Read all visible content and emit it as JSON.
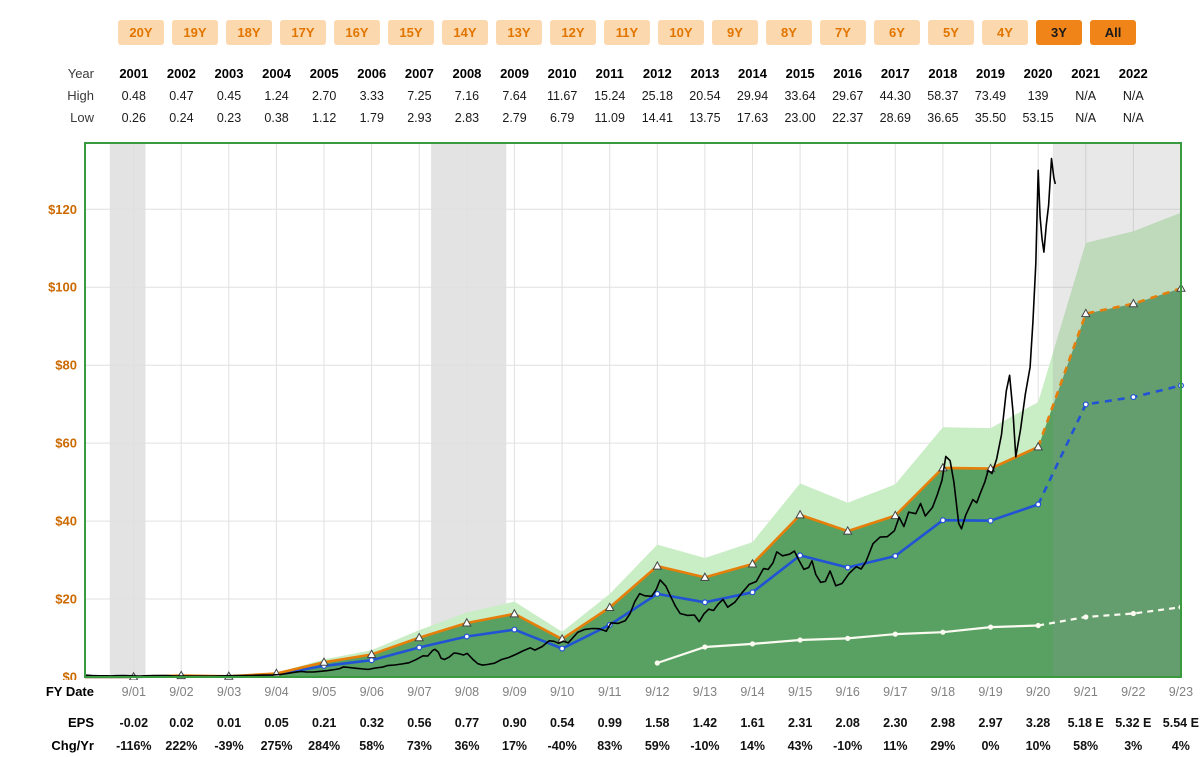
{
  "range_buttons": {
    "items": [
      {
        "label": "20Y",
        "active": false
      },
      {
        "label": "19Y",
        "active": false
      },
      {
        "label": "18Y",
        "active": false
      },
      {
        "label": "17Y",
        "active": false
      },
      {
        "label": "16Y",
        "active": false
      },
      {
        "label": "15Y",
        "active": false
      },
      {
        "label": "14Y",
        "active": false
      },
      {
        "label": "13Y",
        "active": false
      },
      {
        "label": "12Y",
        "active": false
      },
      {
        "label": "11Y",
        "active": false
      },
      {
        "label": "10Y",
        "active": false
      },
      {
        "label": "9Y",
        "active": false
      },
      {
        "label": "8Y",
        "active": false
      },
      {
        "label": "7Y",
        "active": false
      },
      {
        "label": "6Y",
        "active": false
      },
      {
        "label": "5Y",
        "active": false
      },
      {
        "label": "4Y",
        "active": false
      },
      {
        "label": "3Y",
        "active": true
      },
      {
        "label": "All",
        "active": true
      }
    ],
    "active_bg": "#f08418",
    "inactive_bg": "#fbd8ad"
  },
  "price_table": {
    "row_labels": {
      "year": "Year",
      "high": "High",
      "low": "Low"
    },
    "years": [
      "2001",
      "2002",
      "2003",
      "2004",
      "2005",
      "2006",
      "2007",
      "2008",
      "2009",
      "2010",
      "2011",
      "2012",
      "2013",
      "2014",
      "2015",
      "2016",
      "2017",
      "2018",
      "2019",
      "2020",
      "2021",
      "2022"
    ],
    "high": [
      "0.48",
      "0.47",
      "0.45",
      "1.24",
      "2.70",
      "3.33",
      "7.25",
      "7.16",
      "7.64",
      "11.67",
      "15.24",
      "25.18",
      "20.54",
      "29.94",
      "33.64",
      "29.67",
      "44.30",
      "58.37",
      "73.49",
      "139",
      "N/A",
      "N/A"
    ],
    "low": [
      "0.26",
      "0.24",
      "0.23",
      "0.38",
      "1.12",
      "1.79",
      "2.93",
      "2.83",
      "2.79",
      "6.79",
      "11.09",
      "14.41",
      "13.75",
      "17.63",
      "23.00",
      "22.37",
      "28.69",
      "36.65",
      "35.50",
      "53.15",
      "N/A",
      "N/A"
    ]
  },
  "fiscal_table": {
    "fy_date_label": "FY Date",
    "eps_label": "EPS",
    "chg_label": "Chg/Yr",
    "fy_labels": [
      "9/01",
      "9/02",
      "9/03",
      "9/04",
      "9/05",
      "9/06",
      "9/07",
      "9/08",
      "9/09",
      "9/10",
      "9/11",
      "9/12",
      "9/13",
      "9/14",
      "9/15",
      "9/16",
      "9/17",
      "9/18",
      "9/19",
      "9/20",
      "9/21",
      "9/22",
      "9/23"
    ],
    "eps": [
      "-0.02",
      "0.02",
      "0.01",
      "0.05",
      "0.21",
      "0.32",
      "0.56",
      "0.77",
      "0.90",
      "0.54",
      "0.99",
      "1.58",
      "1.42",
      "1.61",
      "2.31",
      "2.08",
      "2.30",
      "2.98",
      "2.97",
      "3.28",
      "5.18 E",
      "5.32 E",
      "5.54 E"
    ],
    "chg": [
      "-116%",
      "222%",
      "-39%",
      "275%",
      "284%",
      "58%",
      "73%",
      "36%",
      "17%",
      "-40%",
      "83%",
      "59%",
      "-10%",
      "14%",
      "43%",
      "-10%",
      "11%",
      "29%",
      "0%",
      "10%",
      "58%",
      "3%",
      "4%"
    ]
  },
  "chart_data": {
    "type": "line",
    "title": "",
    "x_start": 2000.65,
    "x_end": 2023.67,
    "fiscal_month_offset": 0.67,
    "fiscal_years": [
      2001,
      2002,
      2003,
      2004,
      2005,
      2006,
      2007,
      2008,
      2009,
      2010,
      2011,
      2012,
      2013,
      2014,
      2015,
      2016,
      2017,
      2018,
      2019,
      2020,
      2021,
      2022,
      2023
    ],
    "x_tick_labels": [
      "9/01",
      "9/02",
      "9/03",
      "9/04",
      "9/05",
      "9/06",
      "9/07",
      "9/08",
      "9/09",
      "9/10",
      "9/11",
      "9/12",
      "9/13",
      "9/14",
      "9/15",
      "9/16",
      "9/17",
      "9/18",
      "9/19",
      "9/20",
      "9/21",
      "9/22",
      "9/23"
    ],
    "y_axis": {
      "ticks": [
        0,
        20,
        40,
        60,
        80,
        100,
        120
      ],
      "tick_labels": [
        "$0",
        "$20",
        "$40",
        "$60",
        "$80",
        "$100",
        "$120"
      ],
      "max": 137
    },
    "last_actual_year": 2020,
    "recession_bands": [
      [
        2001.17,
        2001.92
      ],
      [
        2007.92,
        2009.5
      ]
    ],
    "forecast_start": 2020.98,
    "colors": {
      "dark_green_fill": "#58a163",
      "light_green_fill": "#c9edc4",
      "orange_line": "#e67e0a",
      "blue_line": "#2153d4",
      "dividend_line": "#fafaf0",
      "price_line": "#000000",
      "recession_band": "#e3e3e3",
      "forecast_overlay": "rgba(150,150,150,0.22)",
      "axis_label_orange": "#cc6a00",
      "border_green": "#3a9a40",
      "grid": "#e0e0e0",
      "plot_bg": "#ffffff"
    },
    "series": {
      "high_band_top": {
        "name": "high-valuation-band-top",
        "values": [
          0,
          0.43,
          0.22,
          1.08,
          4.52,
          6.88,
          12.04,
          16.56,
          19.35,
          11.61,
          21.29,
          33.97,
          30.53,
          34.62,
          49.67,
          44.72,
          49.45,
          64.07,
          63.86,
          70.52,
          111.37,
          114.38,
          119.11
        ]
      },
      "earnings_line": {
        "name": "earnings-justified-valuation",
        "values": [
          0,
          0.36,
          0.18,
          0.9,
          3.78,
          5.76,
          10.08,
          13.86,
          16.2,
          9.72,
          17.82,
          28.44,
          25.56,
          28.98,
          41.58,
          37.44,
          41.4,
          53.64,
          53.46,
          59.04,
          93.24,
          95.76,
          99.72
        ]
      },
      "normal_pe_line": {
        "name": "normal-pe-valuation",
        "values": [
          0,
          0.27,
          0.14,
          0.68,
          2.84,
          4.32,
          7.56,
          10.4,
          12.15,
          7.29,
          13.37,
          21.33,
          19.17,
          21.74,
          31.19,
          28.08,
          31.05,
          40.23,
          40.1,
          44.28,
          69.93,
          71.82,
          74.79
        ]
      },
      "dividend_line": {
        "name": "dividends",
        "start_year": 2012,
        "values": [
          3.6,
          7.7,
          8.5,
          9.5,
          9.9,
          11.0,
          11.5,
          12.8,
          13.2,
          15.4,
          16.3,
          17.9
        ]
      },
      "price_line": {
        "name": "monthly-closing-price",
        "points": [
          [
            2000.67,
            0.45
          ],
          [
            2000.8,
            0.36
          ],
          [
            2000.95,
            0.31
          ],
          [
            2001.1,
            0.31
          ],
          [
            2001.2,
            0.28
          ],
          [
            2001.3,
            0.33
          ],
          [
            2001.45,
            0.36
          ],
          [
            2001.55,
            0.34
          ],
          [
            2001.67,
            0.27
          ],
          [
            2001.8,
            0.26
          ],
          [
            2001.9,
            0.31
          ],
          [
            2002.0,
            0.33
          ],
          [
            2002.1,
            0.37
          ],
          [
            2002.2,
            0.39
          ],
          [
            2002.35,
            0.35
          ],
          [
            2002.5,
            0.28
          ],
          [
            2002.6,
            0.25
          ],
          [
            2002.75,
            0.26
          ],
          [
            2002.9,
            0.24
          ],
          [
            2003.0,
            0.23
          ],
          [
            2003.15,
            0.24
          ],
          [
            2003.3,
            0.26
          ],
          [
            2003.45,
            0.29
          ],
          [
            2003.6,
            0.32
          ],
          [
            2003.75,
            0.34
          ],
          [
            2003.9,
            0.36
          ],
          [
            2004.0,
            0.38
          ],
          [
            2004.15,
            0.42
          ],
          [
            2004.3,
            0.46
          ],
          [
            2004.45,
            0.5
          ],
          [
            2004.6,
            0.55
          ],
          [
            2004.75,
            0.65
          ],
          [
            2004.9,
            0.93
          ],
          [
            2005.0,
            1.1
          ],
          [
            2005.1,
            1.3
          ],
          [
            2005.2,
            1.44
          ],
          [
            2005.3,
            1.28
          ],
          [
            2005.45,
            1.28
          ],
          [
            2005.6,
            1.47
          ],
          [
            2005.75,
            1.65
          ],
          [
            2005.9,
            1.93
          ],
          [
            2006.0,
            2.16
          ],
          [
            2006.08,
            2.58
          ],
          [
            2006.2,
            2.44
          ],
          [
            2006.35,
            2.22
          ],
          [
            2006.5,
            2.05
          ],
          [
            2006.6,
            1.95
          ],
          [
            2006.75,
            2.32
          ],
          [
            2006.9,
            2.55
          ],
          [
            2007.0,
            2.93
          ],
          [
            2007.15,
            3.07
          ],
          [
            2007.3,
            3.34
          ],
          [
            2007.45,
            3.65
          ],
          [
            2007.6,
            4.45
          ],
          [
            2007.75,
            5.45
          ],
          [
            2007.85,
            5.4
          ],
          [
            2007.95,
            6.8
          ],
          [
            2008.0,
            7.1
          ],
          [
            2008.07,
            6.4
          ],
          [
            2008.13,
            4.8
          ],
          [
            2008.2,
            4.48
          ],
          [
            2008.3,
            5.1
          ],
          [
            2008.4,
            6.15
          ],
          [
            2008.5,
            6.0
          ],
          [
            2008.6,
            5.65
          ],
          [
            2008.68,
            6.05
          ],
          [
            2008.8,
            4.5
          ],
          [
            2008.9,
            3.4
          ],
          [
            2009.0,
            3.05
          ],
          [
            2009.1,
            3.2
          ],
          [
            2009.25,
            3.55
          ],
          [
            2009.4,
            4.5
          ],
          [
            2009.55,
            5.0
          ],
          [
            2009.7,
            5.8
          ],
          [
            2009.85,
            6.7
          ],
          [
            2010.0,
            7.5
          ],
          [
            2010.1,
            6.9
          ],
          [
            2010.25,
            7.8
          ],
          [
            2010.4,
            9.3
          ],
          [
            2010.5,
            9.15
          ],
          [
            2010.6,
            8.65
          ],
          [
            2010.7,
            9.2
          ],
          [
            2010.8,
            8.75
          ],
          [
            2010.9,
            10.1
          ],
          [
            2011.0,
            11.5
          ],
          [
            2011.15,
            12.2
          ],
          [
            2011.3,
            12.45
          ],
          [
            2011.45,
            12.4
          ],
          [
            2011.6,
            11.75
          ],
          [
            2011.7,
            13.9
          ],
          [
            2011.85,
            13.75
          ],
          [
            2012.0,
            14.46
          ],
          [
            2012.1,
            16.3
          ],
          [
            2012.2,
            19.4
          ],
          [
            2012.3,
            21.4
          ],
          [
            2012.4,
            20.85
          ],
          [
            2012.55,
            20.7
          ],
          [
            2012.65,
            22.5
          ],
          [
            2012.73,
            24.9
          ],
          [
            2012.85,
            23.3
          ],
          [
            2012.95,
            20.7
          ],
          [
            2013.05,
            18.2
          ],
          [
            2013.15,
            16.3
          ],
          [
            2013.3,
            15.8
          ],
          [
            2013.45,
            15.9
          ],
          [
            2013.55,
            14.2
          ],
          [
            2013.65,
            16.2
          ],
          [
            2013.75,
            17.4
          ],
          [
            2013.85,
            17.05
          ],
          [
            2013.95,
            18.7
          ],
          [
            2014.05,
            19.9
          ],
          [
            2014.15,
            17.9
          ],
          [
            2014.3,
            19.2
          ],
          [
            2014.45,
            21.6
          ],
          [
            2014.6,
            23.75
          ],
          [
            2014.75,
            24.5
          ],
          [
            2014.9,
            27.8
          ],
          [
            2015.0,
            27.6
          ],
          [
            2015.1,
            29.3
          ],
          [
            2015.18,
            32.1
          ],
          [
            2015.3,
            31.1
          ],
          [
            2015.45,
            31.5
          ],
          [
            2015.55,
            32.3
          ],
          [
            2015.65,
            29.8
          ],
          [
            2015.75,
            27.6
          ],
          [
            2015.85,
            28.1
          ],
          [
            2015.92,
            29.8
          ],
          [
            2016.0,
            26.3
          ],
          [
            2016.1,
            24.3
          ],
          [
            2016.2,
            24.5
          ],
          [
            2016.3,
            27.2
          ],
          [
            2016.42,
            23.4
          ],
          [
            2016.55,
            24.0
          ],
          [
            2016.7,
            26.6
          ],
          [
            2016.85,
            28.3
          ],
          [
            2016.95,
            27.7
          ],
          [
            2017.05,
            29.5
          ],
          [
            2017.2,
            34.2
          ],
          [
            2017.35,
            35.9
          ],
          [
            2017.5,
            36.0
          ],
          [
            2017.65,
            37.5
          ],
          [
            2017.75,
            41.0
          ],
          [
            2017.85,
            38.6
          ],
          [
            2017.95,
            42.3
          ],
          [
            2018.1,
            41.9
          ],
          [
            2018.2,
            44.5
          ],
          [
            2018.3,
            41.3
          ],
          [
            2018.45,
            43.5
          ],
          [
            2018.55,
            46.7
          ],
          [
            2018.65,
            50.5
          ],
          [
            2018.73,
            56.6
          ],
          [
            2018.82,
            55.5
          ],
          [
            2018.9,
            50.0
          ],
          [
            2019.0,
            39.4
          ],
          [
            2019.06,
            38.0
          ],
          [
            2019.15,
            41.6
          ],
          [
            2019.3,
            45.5
          ],
          [
            2019.38,
            44.7
          ],
          [
            2019.45,
            47.0
          ],
          [
            2019.55,
            50.0
          ],
          [
            2019.62,
            53.0
          ],
          [
            2019.7,
            52.2
          ],
          [
            2019.8,
            56.0
          ],
          [
            2019.9,
            62.2
          ],
          [
            2020.0,
            73.4
          ],
          [
            2020.07,
            77.4
          ],
          [
            2020.14,
            68.3
          ],
          [
            2020.2,
            56.5
          ],
          [
            2020.3,
            63.6
          ],
          [
            2020.4,
            72.5
          ],
          [
            2020.5,
            79.5
          ],
          [
            2020.56,
            91.0
          ],
          [
            2020.62,
            106.0
          ],
          [
            2020.67,
            130.0
          ],
          [
            2020.71,
            118.0
          ],
          [
            2020.75,
            112.5
          ],
          [
            2020.79,
            109.0
          ],
          [
            2020.84,
            116.0
          ],
          [
            2020.89,
            121.0
          ],
          [
            2020.95,
            133.0
          ],
          [
            2021.0,
            128.0
          ],
          [
            2021.03,
            126.5
          ]
        ]
      }
    }
  }
}
